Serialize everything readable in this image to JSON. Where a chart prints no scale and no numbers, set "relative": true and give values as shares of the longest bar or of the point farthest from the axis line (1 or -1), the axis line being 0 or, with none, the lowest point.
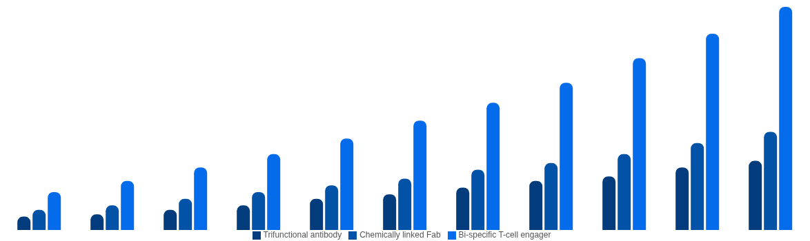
{
  "chart_data": {
    "type": "bar",
    "relative": true,
    "legend": "bottom",
    "categories": [
      null,
      null,
      null,
      null,
      null,
      null,
      null,
      null,
      null,
      null,
      null
    ],
    "series": [
      {
        "name": "Trifunctional antibody",
        "color": "#023c7c",
        "values": [
          0.06,
          0.07,
          0.09,
          0.11,
          0.14,
          0.16,
          0.19,
          0.22,
          0.24,
          0.28,
          0.31
        ]
      },
      {
        "name": "Chemically linked Fab",
        "color": "#0252a8",
        "values": [
          0.09,
          0.11,
          0.14,
          0.17,
          0.2,
          0.23,
          0.27,
          0.3,
          0.34,
          0.39,
          0.44
        ]
      },
      {
        "name": "Bi-specific T-cell engager",
        "color": "#046cea",
        "values": [
          0.17,
          0.22,
          0.28,
          0.34,
          0.41,
          0.49,
          0.57,
          0.66,
          0.77,
          0.88,
          1
        ]
      }
    ]
  }
}
